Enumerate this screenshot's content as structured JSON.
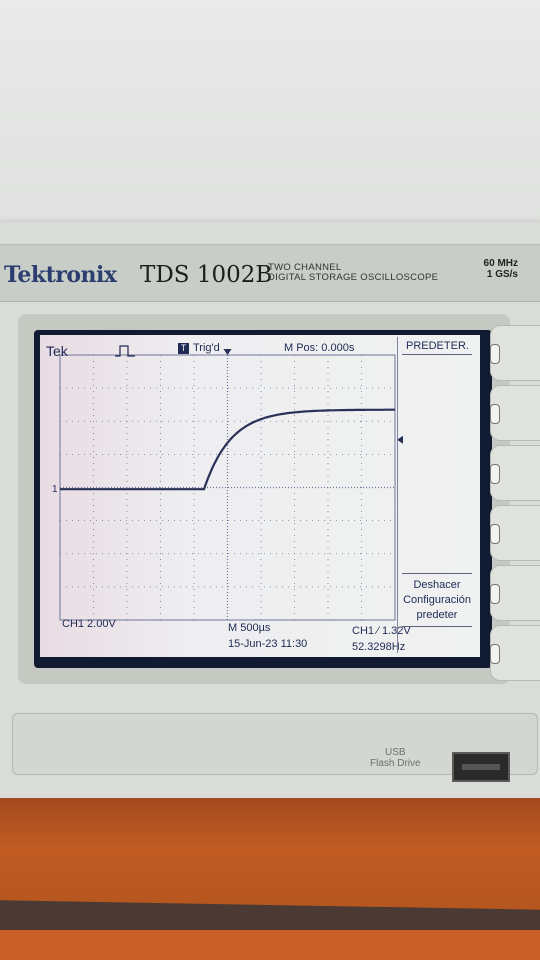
{
  "device": {
    "brand": "Tektronix",
    "model": "TDS 1002B",
    "description_line1": "TWO CHANNEL",
    "description_line2": "DIGITAL STORAGE OSCILLOSCOPE",
    "bandwidth": "60 MHz",
    "sample_rate": "1 GS/s",
    "usb_label_line1": "USB",
    "usb_label_line2": "Flash Drive"
  },
  "screen": {
    "logo": "Tek",
    "trigger_status": "Trig'd",
    "main_position": "M Pos: 0.000s",
    "ch1_scale": "CH1  2.00V",
    "timebase": "M 500µs",
    "datetime": "15-Jun-23 11:30",
    "trigger_info": "CH1 ∕ 1.32V",
    "frequency": "52.3298Hz",
    "ch1_marker": "1",
    "trigger_level_fraction": 0.36,
    "waveform": {
      "baseline_div": -0.05,
      "final_div": 2.35,
      "rise_start_div": 4.3,
      "rise_tau_div": 0.8
    },
    "colors": {
      "trace": "#2a3158",
      "grid": "#6e7597",
      "text": "#1f2a55"
    }
  },
  "menu": {
    "title": "PREDETER.",
    "button_line1": "Deshacer",
    "button_line2": "Configuración",
    "button_line3": "predeter"
  }
}
